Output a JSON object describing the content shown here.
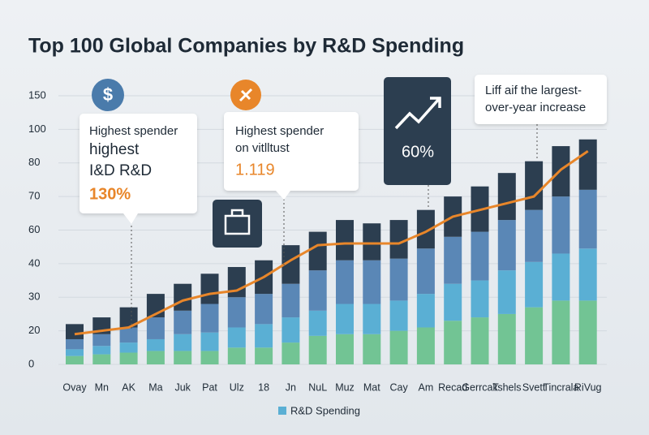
{
  "chart_data": {
    "type": "stacked-bar-line",
    "title": "Top 100 Global Companies by R&D Spending",
    "categories": [
      "Ovay",
      "Mn",
      "AK",
      "Ma",
      "Juk",
      "Pat",
      "Ulz",
      "18",
      "Jn",
      "NuL",
      "Muz",
      "Mat",
      "Cay",
      "Am",
      "Recad",
      "Gerrcak",
      "Tshels",
      "Svett",
      "Tincrala",
      "RiVug"
    ],
    "series": [
      {
        "color": "#72c494",
        "values": [
          5,
          6,
          7,
          8,
          8,
          8,
          10,
          10,
          13,
          17,
          18,
          18,
          20,
          21,
          23,
          24,
          25,
          27,
          29,
          29
        ]
      },
      {
        "name": "R&D Spending",
        "color": "#5aafd4",
        "values": [
          4,
          5,
          6,
          7,
          10,
          11,
          11,
          12,
          11,
          9,
          10,
          10,
          9,
          10,
          11,
          11,
          13,
          14,
          17,
          20
        ]
      },
      {
        "color": "#5a87b6",
        "values": [
          6,
          7,
          8,
          9,
          8,
          9,
          9,
          9,
          10,
          12,
          14,
          14,
          14,
          18,
          22,
          24,
          25,
          25,
          24,
          23
        ]
      },
      {
        "color": "#2c3e50",
        "values": [
          7,
          6,
          6,
          7,
          8,
          9,
          9,
          11,
          17,
          21,
          21,
          20,
          20,
          17,
          14,
          14,
          14,
          15,
          20,
          22
        ]
      }
    ],
    "line": {
      "color": "#e8862a",
      "values": [
        18,
        20,
        21,
        25,
        29,
        31,
        32,
        36,
        42,
        51,
        52,
        52,
        52,
        59,
        64,
        66,
        68,
        70,
        78,
        87
      ]
    },
    "ylim": [
      0,
      150
    ],
    "yticks": [
      0,
      20,
      30,
      40,
      60,
      70,
      80,
      100,
      150
    ],
    "grid": true,
    "annotations": [
      {
        "icon": "$",
        "lines": [
          "Highest spender",
          "highest",
          "I&D R&D"
        ],
        "highlight": "130%"
      },
      {
        "lines": [
          "Highest spender",
          "on vitlltust"
        ],
        "highlight": "1.119"
      },
      {
        "highlight": "60%"
      },
      {
        "lines": [
          "Liff aif the largest-",
          "over-year increase"
        ]
      }
    ]
  }
}
